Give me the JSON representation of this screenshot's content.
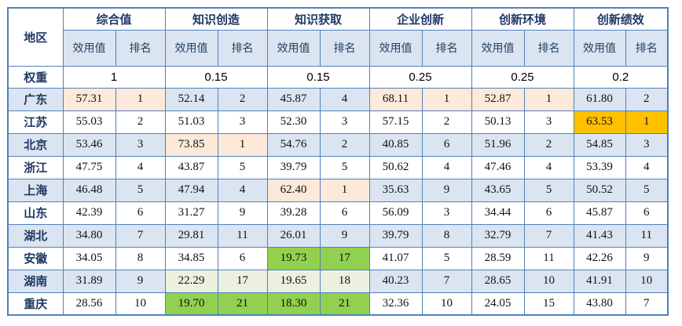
{
  "table": {
    "region_header": "地区",
    "weight_label": "权重",
    "subheader_utility": "效用值",
    "subheader_rank": "排名",
    "groups": [
      {
        "label": "综合值",
        "weight": "1"
      },
      {
        "label": "知识创造",
        "weight": "0.15"
      },
      {
        "label": "知识获取",
        "weight": "0.15"
      },
      {
        "label": "企业创新",
        "weight": "0.25"
      },
      {
        "label": "创新环境",
        "weight": "0.25"
      },
      {
        "label": "创新绩效",
        "weight": "0.2"
      }
    ],
    "rows": [
      {
        "region": "广东",
        "cells": [
          {
            "value": "57.31",
            "rank": "1",
            "hl": "cream"
          },
          {
            "value": "52.14",
            "rank": "2",
            "hl": null
          },
          {
            "value": "45.87",
            "rank": "4",
            "hl": null
          },
          {
            "value": "68.11",
            "rank": "1",
            "hl": "cream"
          },
          {
            "value": "52.87",
            "rank": "1",
            "hl": "cream"
          },
          {
            "value": "61.80",
            "rank": "2",
            "hl": null
          }
        ]
      },
      {
        "region": "江苏",
        "cells": [
          {
            "value": "55.03",
            "rank": "2",
            "hl": null
          },
          {
            "value": "51.03",
            "rank": "3",
            "hl": null
          },
          {
            "value": "52.30",
            "rank": "3",
            "hl": null
          },
          {
            "value": "57.15",
            "rank": "2",
            "hl": null
          },
          {
            "value": "50.13",
            "rank": "3",
            "hl": null
          },
          {
            "value": "63.53",
            "rank": "1",
            "hl": "orange"
          }
        ]
      },
      {
        "region": "北京",
        "cells": [
          {
            "value": "53.46",
            "rank": "3",
            "hl": null
          },
          {
            "value": "73.85",
            "rank": "1",
            "hl": "cream"
          },
          {
            "value": "54.76",
            "rank": "2",
            "hl": null
          },
          {
            "value": "40.85",
            "rank": "6",
            "hl": null
          },
          {
            "value": "51.96",
            "rank": "2",
            "hl": null
          },
          {
            "value": "54.85",
            "rank": "3",
            "hl": null
          }
        ]
      },
      {
        "region": "浙江",
        "cells": [
          {
            "value": "47.75",
            "rank": "4",
            "hl": null
          },
          {
            "value": "43.87",
            "rank": "5",
            "hl": null
          },
          {
            "value": "39.79",
            "rank": "5",
            "hl": null
          },
          {
            "value": "50.62",
            "rank": "4",
            "hl": null
          },
          {
            "value": "47.46",
            "rank": "4",
            "hl": null
          },
          {
            "value": "53.39",
            "rank": "4",
            "hl": null
          }
        ]
      },
      {
        "region": "上海",
        "cells": [
          {
            "value": "46.48",
            "rank": "5",
            "hl": null
          },
          {
            "value": "47.94",
            "rank": "4",
            "hl": null
          },
          {
            "value": "62.40",
            "rank": "1",
            "hl": "cream"
          },
          {
            "value": "35.63",
            "rank": "9",
            "hl": null
          },
          {
            "value": "43.65",
            "rank": "5",
            "hl": null
          },
          {
            "value": "50.52",
            "rank": "5",
            "hl": null
          }
        ]
      },
      {
        "region": "山东",
        "cells": [
          {
            "value": "42.39",
            "rank": "6",
            "hl": null
          },
          {
            "value": "31.27",
            "rank": "9",
            "hl": null
          },
          {
            "value": "39.28",
            "rank": "6",
            "hl": null
          },
          {
            "value": "56.09",
            "rank": "3",
            "hl": null
          },
          {
            "value": "34.44",
            "rank": "6",
            "hl": null
          },
          {
            "value": "45.87",
            "rank": "6",
            "hl": null
          }
        ]
      },
      {
        "region": "湖北",
        "cells": [
          {
            "value": "34.80",
            "rank": "7",
            "hl": null
          },
          {
            "value": "29.81",
            "rank": "11",
            "hl": null
          },
          {
            "value": "26.01",
            "rank": "9",
            "hl": null
          },
          {
            "value": "39.79",
            "rank": "8",
            "hl": null
          },
          {
            "value": "32.79",
            "rank": "7",
            "hl": null
          },
          {
            "value": "41.43",
            "rank": "11",
            "hl": null
          }
        ]
      },
      {
        "region": "安徽",
        "cells": [
          {
            "value": "34.05",
            "rank": "8",
            "hl": null
          },
          {
            "value": "34.85",
            "rank": "6",
            "hl": null
          },
          {
            "value": "19.73",
            "rank": "17",
            "hl": "green"
          },
          {
            "value": "41.07",
            "rank": "5",
            "hl": null
          },
          {
            "value": "28.59",
            "rank": "11",
            "hl": null
          },
          {
            "value": "42.26",
            "rank": "9",
            "hl": null
          }
        ]
      },
      {
        "region": "湖南",
        "cells": [
          {
            "value": "31.89",
            "rank": "9",
            "hl": null
          },
          {
            "value": "22.29",
            "rank": "17",
            "hl": "lightgreen"
          },
          {
            "value": "19.65",
            "rank": "18",
            "hl": "lightgreen"
          },
          {
            "value": "40.23",
            "rank": "7",
            "hl": null
          },
          {
            "value": "28.65",
            "rank": "10",
            "hl": null
          },
          {
            "value": "41.91",
            "rank": "10",
            "hl": null
          }
        ]
      },
      {
        "region": "重庆",
        "cells": [
          {
            "value": "28.56",
            "rank": "10",
            "hl": null
          },
          {
            "value": "19.70",
            "rank": "21",
            "hl": "green"
          },
          {
            "value": "18.30",
            "rank": "21",
            "hl": "green"
          },
          {
            "value": "32.36",
            "rank": "10",
            "hl": null
          },
          {
            "value": "24.05",
            "rank": "15",
            "hl": null
          },
          {
            "value": "43.80",
            "rank": "7",
            "hl": null
          }
        ]
      }
    ]
  },
  "colors": {
    "border": "#4f81bd",
    "stripe_blue": "#dbe5f1",
    "highlight_cream": "#fde9d9",
    "highlight_orange": "#ffc000",
    "highlight_green": "#92d050",
    "highlight_lightgreen": "#ebf1de",
    "header_text": "#1f3864"
  }
}
